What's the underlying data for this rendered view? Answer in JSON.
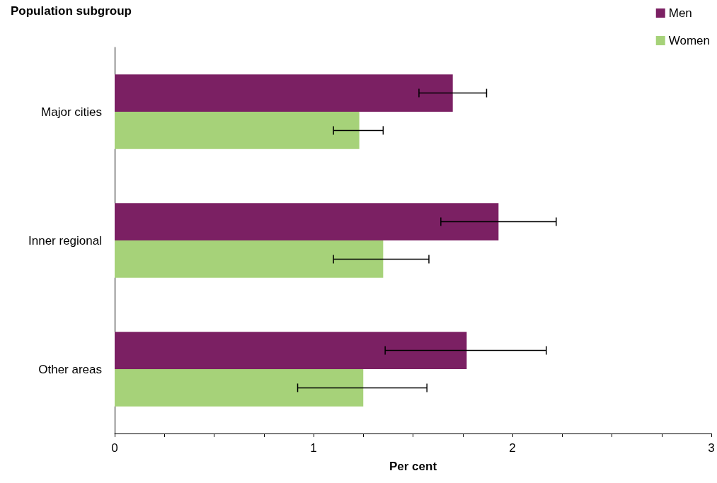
{
  "chart_data": {
    "type": "bar",
    "orientation": "horizontal",
    "ylabel": "Population subgroup",
    "xlabel": "Per cent",
    "categories": [
      "Major cities",
      "Inner regional",
      "Other areas"
    ],
    "series": [
      {
        "name": "Men",
        "color": "#7b2063",
        "values": [
          1.7,
          1.93,
          1.77
        ],
        "errors": [
          [
            1.53,
            1.87
          ],
          [
            1.64,
            2.22
          ],
          [
            1.36,
            2.17
          ]
        ]
      },
      {
        "name": "Women",
        "color": "#a6d279",
        "values": [
          1.23,
          1.35,
          1.25
        ],
        "errors": [
          [
            1.1,
            1.35
          ],
          [
            1.1,
            1.58
          ],
          [
            0.92,
            1.57
          ]
        ]
      }
    ],
    "xlim": [
      0,
      3
    ],
    "xticks": [
      0,
      {
        "value": 0.25,
        "label": null
      },
      {
        "value": 0.5,
        "label": null
      },
      {
        "value": 0.75,
        "label": null
      },
      1,
      {
        "value": 1.25,
        "label": null
      },
      {
        "value": 1.5,
        "label": null
      },
      {
        "value": 1.75,
        "label": null
      },
      2,
      {
        "value": 2.25,
        "label": null
      },
      {
        "value": 2.5,
        "label": null
      },
      {
        "value": 2.75,
        "label": null
      },
      3
    ],
    "grid": false,
    "legend": "top right"
  }
}
